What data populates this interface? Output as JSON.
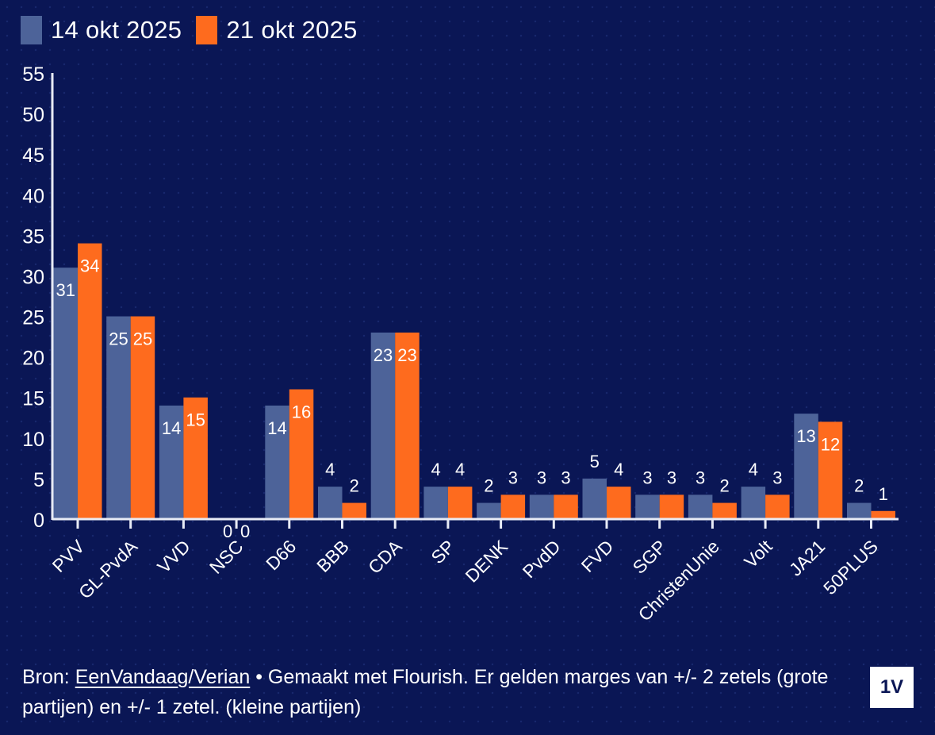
{
  "legend": [
    {
      "label": "14 okt 2025",
      "color": "#4d6399"
    },
    {
      "label": "21 okt 2025",
      "color": "#fe6b1e"
    }
  ],
  "chart_data": {
    "type": "bar",
    "title": "",
    "xlabel": "",
    "ylabel": "",
    "ylim": [
      0,
      55
    ],
    "yticks": [
      0,
      5,
      10,
      15,
      20,
      25,
      30,
      35,
      40,
      45,
      50,
      55
    ],
    "grid": false,
    "legend_position": "top-left",
    "categories": [
      "PVV",
      "GL-PvdA",
      "VVD",
      "NSC",
      "D66",
      "BBB",
      "CDA",
      "SP",
      "DENK",
      "PvdD",
      "FVD",
      "SGP",
      "ChristenUnie",
      "Volt",
      "JA21",
      "50PLUS"
    ],
    "series": [
      {
        "name": "14 okt 2025",
        "color": "#4d6399",
        "values": [
          31,
          25,
          14,
          0,
          14,
          4,
          23,
          4,
          2,
          3,
          5,
          3,
          3,
          4,
          13,
          2
        ]
      },
      {
        "name": "21 okt 2025",
        "color": "#fe6b1e",
        "values": [
          34,
          25,
          15,
          0,
          16,
          2,
          23,
          4,
          3,
          3,
          4,
          3,
          2,
          3,
          12,
          1
        ]
      }
    ]
  },
  "footer": {
    "prefix": "Bron: ",
    "source_link": "EenVandaag/Verian",
    "text": " • Gemaakt met Flourish. Er gelden marges van +/- 2 zetels (grote partijen) en +/- 1 zetel. (kleine partijen)"
  },
  "logo": {
    "text": "1V"
  }
}
